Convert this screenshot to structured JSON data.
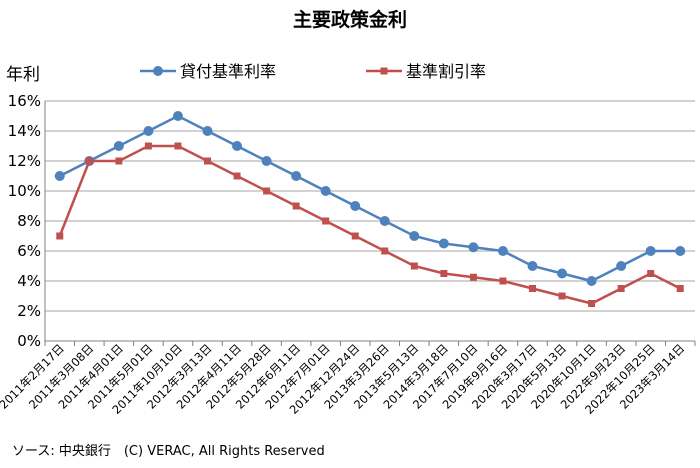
{
  "chart_data": {
    "type": "line",
    "title": "主要政策金利",
    "ylabel": "年利",
    "xlabel": "",
    "ylim": [
      0,
      16
    ],
    "y_ticks": [
      "0%",
      "2%",
      "4%",
      "6%",
      "8%",
      "10%",
      "12%",
      "14%",
      "16%"
    ],
    "grid": true,
    "legend_position": "top",
    "categories": [
      "2011年2月17日",
      "2011年3月08日",
      "2011年4月01日",
      "2011年5月01日",
      "2011年10月10日",
      "2012年3月13日",
      "2012年4月11日",
      "2012年5月28日",
      "2012年6月11日",
      "2012年7月01日",
      "2012年12月24日",
      "2013年3月26日",
      "2013年5月13日",
      "2014年3月18日",
      "2017年7月10日",
      "2019年9月16日",
      "2020年3月17日",
      "2020年5月13日",
      "2020年10月1日",
      "2022年9月23日",
      "2022年10月25日",
      "2023年3月14日"
    ],
    "series": [
      {
        "name": "貸付基準利率",
        "color": "#4f81bd",
        "marker": "circle",
        "values": [
          11,
          12,
          13,
          14,
          15,
          14,
          13,
          12,
          11,
          10,
          9,
          8,
          7,
          6.5,
          6.25,
          6,
          5,
          4.5,
          4,
          5,
          6,
          6
        ]
      },
      {
        "name": "基準割引率",
        "color": "#c0504d",
        "marker": "square",
        "values": [
          7,
          12,
          12,
          13,
          13,
          12,
          11,
          10,
          9,
          8,
          7,
          6,
          5,
          4.5,
          4.25,
          4,
          3.5,
          3,
          2.5,
          3.5,
          4.5,
          3.5
        ]
      }
    ]
  },
  "source": "ソース: 中央銀行　(C) VERAC, All Rights Reserved"
}
